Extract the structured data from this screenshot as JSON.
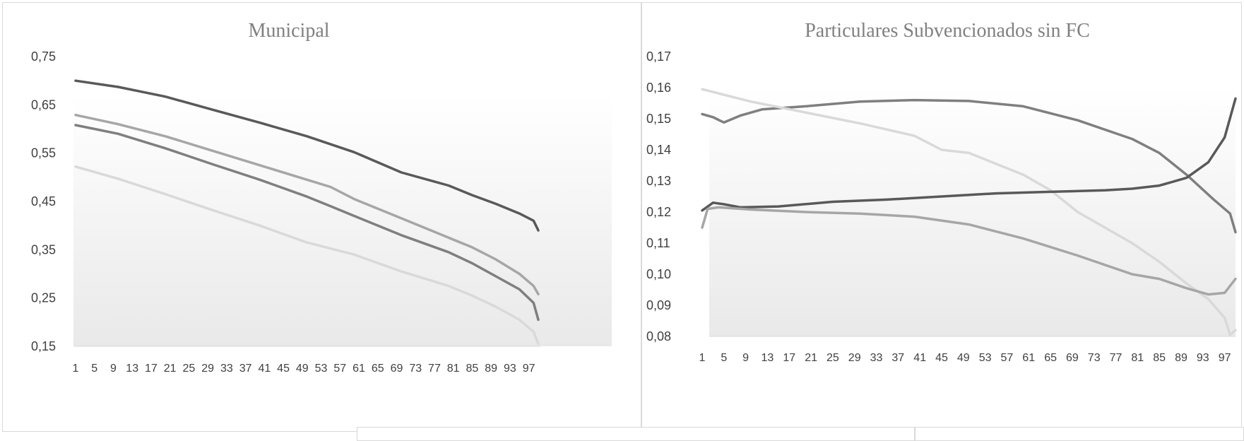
{
  "chart_data": [
    {
      "type": "line",
      "title": "Municipal",
      "xlabel": "",
      "ylabel": "",
      "x_range": [
        1,
        99
      ],
      "x_ticks": [
        1,
        5,
        9,
        13,
        17,
        21,
        25,
        29,
        33,
        37,
        41,
        45,
        49,
        53,
        57,
        61,
        65,
        69,
        73,
        77,
        81,
        85,
        89,
        93,
        97
      ],
      "ylim": [
        0.15,
        0.75
      ],
      "y_ticks": [
        "0,75",
        "0,65",
        "0,55",
        "0,45",
        "0,35",
        "0,25",
        "0,15"
      ],
      "y_tick_values": [
        0.75,
        0.65,
        0.55,
        0.45,
        0.35,
        0.25,
        0.15
      ],
      "grid": false,
      "legend": "none",
      "series": [
        {
          "color": "#595959",
          "points": [
            [
              1,
              0.7
            ],
            [
              10,
              0.687
            ],
            [
              20,
              0.667
            ],
            [
              30,
              0.64
            ],
            [
              40,
              0.613
            ],
            [
              50,
              0.585
            ],
            [
              60,
              0.552
            ],
            [
              70,
              0.51
            ],
            [
              80,
              0.483
            ],
            [
              85,
              0.463
            ],
            [
              90,
              0.445
            ],
            [
              95,
              0.425
            ],
            [
              98,
              0.41
            ],
            [
              99,
              0.39
            ]
          ]
        },
        {
          "color": "#a6a6a6",
          "points": [
            [
              1,
              0.629
            ],
            [
              10,
              0.61
            ],
            [
              20,
              0.585
            ],
            [
              30,
              0.555
            ],
            [
              40,
              0.525
            ],
            [
              50,
              0.495
            ],
            [
              55,
              0.48
            ],
            [
              60,
              0.455
            ],
            [
              70,
              0.415
            ],
            [
              80,
              0.375
            ],
            [
              85,
              0.355
            ],
            [
              90,
              0.33
            ],
            [
              95,
              0.3
            ],
            [
              98,
              0.275
            ],
            [
              99,
              0.258
            ]
          ]
        },
        {
          "color": "#7f7f7f",
          "points": [
            [
              1,
              0.608
            ],
            [
              10,
              0.59
            ],
            [
              20,
              0.56
            ],
            [
              30,
              0.527
            ],
            [
              40,
              0.495
            ],
            [
              50,
              0.46
            ],
            [
              55,
              0.44
            ],
            [
              60,
              0.42
            ],
            [
              70,
              0.38
            ],
            [
              80,
              0.345
            ],
            [
              85,
              0.322
            ],
            [
              90,
              0.295
            ],
            [
              95,
              0.268
            ],
            [
              98,
              0.24
            ],
            [
              99,
              0.205
            ]
          ]
        },
        {
          "color": "#d9d9d9",
          "points": [
            [
              1,
              0.522
            ],
            [
              10,
              0.497
            ],
            [
              20,
              0.465
            ],
            [
              30,
              0.432
            ],
            [
              40,
              0.4
            ],
            [
              50,
              0.365
            ],
            [
              60,
              0.34
            ],
            [
              70,
              0.305
            ],
            [
              80,
              0.275
            ],
            [
              85,
              0.255
            ],
            [
              90,
              0.232
            ],
            [
              95,
              0.205
            ],
            [
              98,
              0.18
            ],
            [
              99,
              0.155
            ]
          ]
        }
      ]
    },
    {
      "type": "line",
      "title": "Particulares Subvencionados sin FC",
      "xlabel": "",
      "ylabel": "",
      "x_range": [
        1,
        99
      ],
      "x_ticks": [
        1,
        5,
        9,
        13,
        17,
        21,
        25,
        29,
        33,
        37,
        41,
        45,
        49,
        53,
        57,
        61,
        65,
        69,
        73,
        77,
        81,
        85,
        89,
        93,
        97
      ],
      "ylim": [
        0.08,
        0.17
      ],
      "y_ticks": [
        "0,17",
        "0,16",
        "0,15",
        "0,14",
        "0,13",
        "0,12",
        "0,11",
        "0,10",
        "0,09",
        "0,08"
      ],
      "y_tick_values": [
        0.17,
        0.16,
        0.15,
        0.14,
        0.13,
        0.12,
        0.11,
        0.1,
        0.09,
        0.08
      ],
      "grid": false,
      "legend": "none",
      "series": [
        {
          "color": "#7f7f7f",
          "points": [
            [
              1,
              0.1515
            ],
            [
              3,
              0.1505
            ],
            [
              5,
              0.1488
            ],
            [
              8,
              0.151
            ],
            [
              12,
              0.153
            ],
            [
              20,
              0.154
            ],
            [
              30,
              0.1555
            ],
            [
              40,
              0.156
            ],
            [
              50,
              0.1557
            ],
            [
              60,
              0.154
            ],
            [
              70,
              0.1495
            ],
            [
              80,
              0.1435
            ],
            [
              85,
              0.139
            ],
            [
              90,
              0.132
            ],
            [
              95,
              0.124
            ],
            [
              98,
              0.1195
            ],
            [
              99,
              0.1135
            ]
          ]
        },
        {
          "color": "#d9d9d9",
          "points": [
            [
              1,
              0.1595
            ],
            [
              10,
              0.1555
            ],
            [
              20,
              0.152
            ],
            [
              30,
              0.1485
            ],
            [
              40,
              0.1445
            ],
            [
              45,
              0.14
            ],
            [
              50,
              0.139
            ],
            [
              60,
              0.132
            ],
            [
              65,
              0.127
            ],
            [
              70,
              0.12
            ],
            [
              80,
              0.11
            ],
            [
              85,
              0.104
            ],
            [
              90,
              0.097
            ],
            [
              94,
              0.092
            ],
            [
              97,
              0.086
            ],
            [
              98,
              0.0805
            ],
            [
              99,
              0.082
            ]
          ]
        },
        {
          "color": "#595959",
          "points": [
            [
              1,
              0.1205
            ],
            [
              3,
              0.123
            ],
            [
              5,
              0.1225
            ],
            [
              8,
              0.1215
            ],
            [
              15,
              0.1218
            ],
            [
              25,
              0.1233
            ],
            [
              35,
              0.124
            ],
            [
              45,
              0.125
            ],
            [
              55,
              0.126
            ],
            [
              65,
              0.1265
            ],
            [
              75,
              0.127
            ],
            [
              80,
              0.1275
            ],
            [
              85,
              0.1285
            ],
            [
              90,
              0.131
            ],
            [
              94,
              0.136
            ],
            [
              97,
              0.144
            ],
            [
              99,
              0.1565
            ]
          ]
        },
        {
          "color": "#a6a6a6",
          "points": [
            [
              1,
              0.115
            ],
            [
              2,
              0.121
            ],
            [
              4,
              0.1215
            ],
            [
              10,
              0.1208
            ],
            [
              20,
              0.12
            ],
            [
              30,
              0.1195
            ],
            [
              40,
              0.1185
            ],
            [
              50,
              0.116
            ],
            [
              60,
              0.1115
            ],
            [
              70,
              0.106
            ],
            [
              80,
              0.1
            ],
            [
              85,
              0.0985
            ],
            [
              90,
              0.0955
            ],
            [
              94,
              0.0935
            ],
            [
              97,
              0.094
            ],
            [
              99,
              0.0985
            ]
          ]
        }
      ]
    }
  ]
}
